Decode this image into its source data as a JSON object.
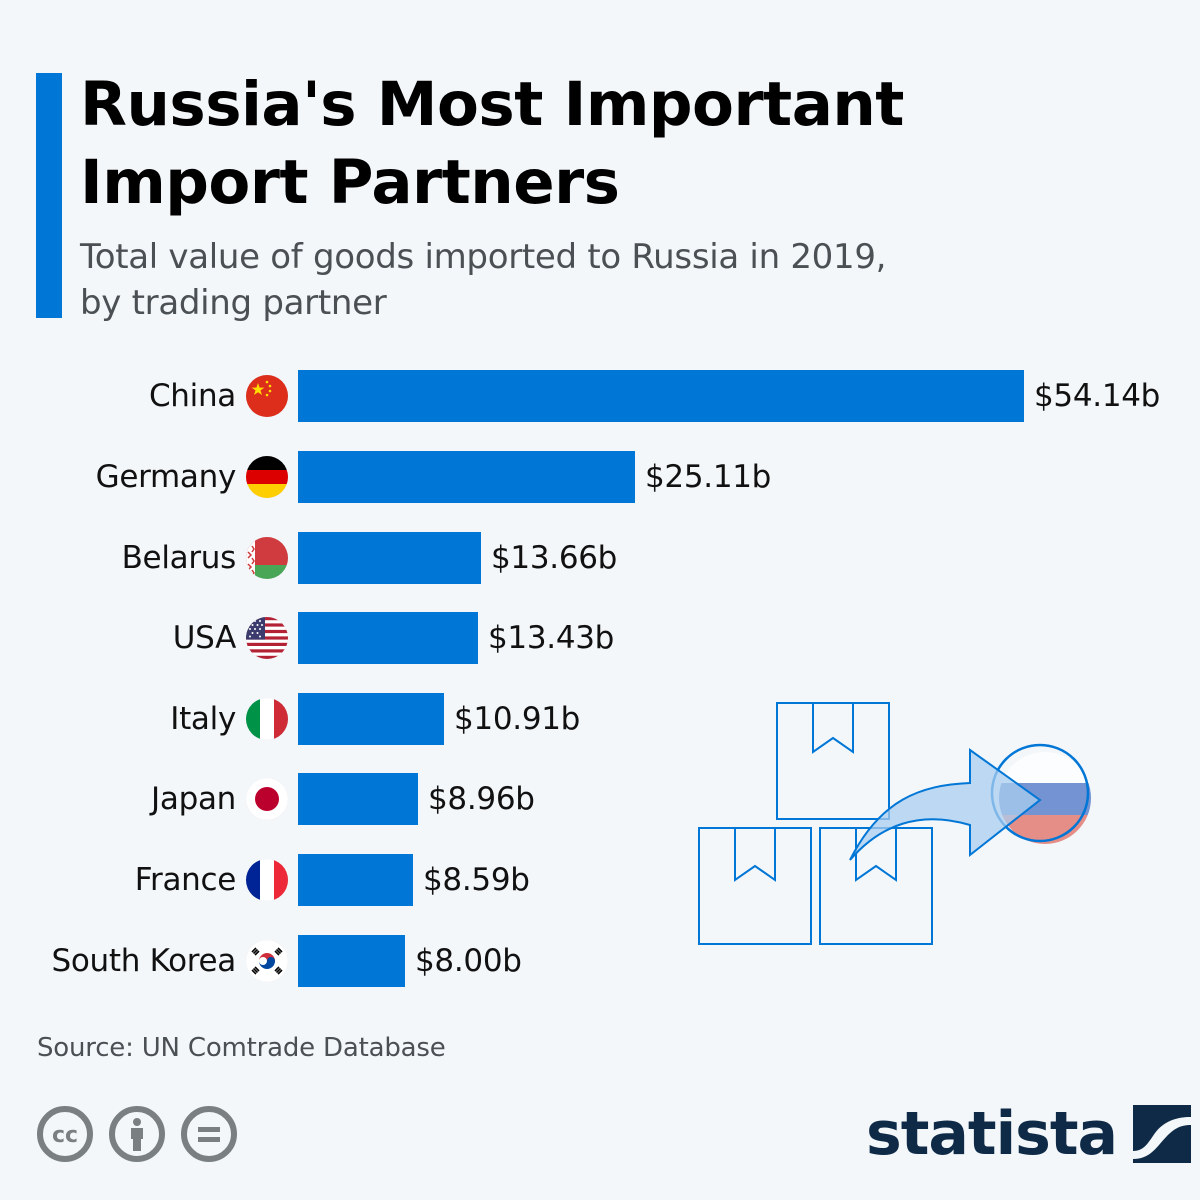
{
  "header": {
    "title_line1": "Russia's Most Important",
    "title_line2": "Import Partners",
    "subtitle_line1": "Total value of goods imported to Russia in 2019,",
    "subtitle_line2": "by trading partner",
    "accent_color": "#0076d6"
  },
  "chart_data": {
    "type": "bar",
    "orientation": "horizontal",
    "title": "Russia's Most Important Import Partners",
    "subtitle": "Total value of goods imported to Russia in 2019, by trading partner",
    "categories": [
      "China",
      "Germany",
      "Belarus",
      "USA",
      "Italy",
      "Japan",
      "France",
      "South Korea"
    ],
    "values": [
      54.14,
      25.11,
      13.66,
      13.43,
      10.91,
      8.96,
      8.59,
      8.0
    ],
    "value_labels": [
      "$54.14b",
      "$25.11b",
      "$13.66b",
      "$13.43b",
      "$10.91b",
      "$8.96b",
      "$8.59b",
      "$8.00b"
    ],
    "unit": "billion USD",
    "xlabel": "",
    "ylabel": "",
    "grid": false,
    "legend": "none",
    "bar_color": "#0076d6",
    "xlim": [
      0,
      54.14
    ]
  },
  "rows": [
    {
      "country": "China",
      "value": 54.14,
      "label": "$54.14b",
      "flag": "china-flag-icon"
    },
    {
      "country": "Germany",
      "value": 25.11,
      "label": "$25.11b",
      "flag": "germany-flag-icon"
    },
    {
      "country": "Belarus",
      "value": 13.66,
      "label": "$13.66b",
      "flag": "belarus-flag-icon"
    },
    {
      "country": "USA",
      "value": 13.43,
      "label": "$13.43b",
      "flag": "usa-flag-icon"
    },
    {
      "country": "Italy",
      "value": 10.91,
      "label": "$10.91b",
      "flag": "italy-flag-icon"
    },
    {
      "country": "Japan",
      "value": 8.96,
      "label": "$8.96b",
      "flag": "japan-flag-icon"
    },
    {
      "country": "France",
      "value": 8.59,
      "label": "$8.59b",
      "flag": "france-flag-icon"
    },
    {
      "country": "South Korea",
      "value": 8.0,
      "label": "$8.00b",
      "flag": "south-korea-flag-icon"
    }
  ],
  "footer": {
    "source": "Source: UN Comtrade Database",
    "license_icons": [
      "cc-icon",
      "attribution-icon",
      "no-derivatives-icon"
    ],
    "logo_text": "statista"
  }
}
